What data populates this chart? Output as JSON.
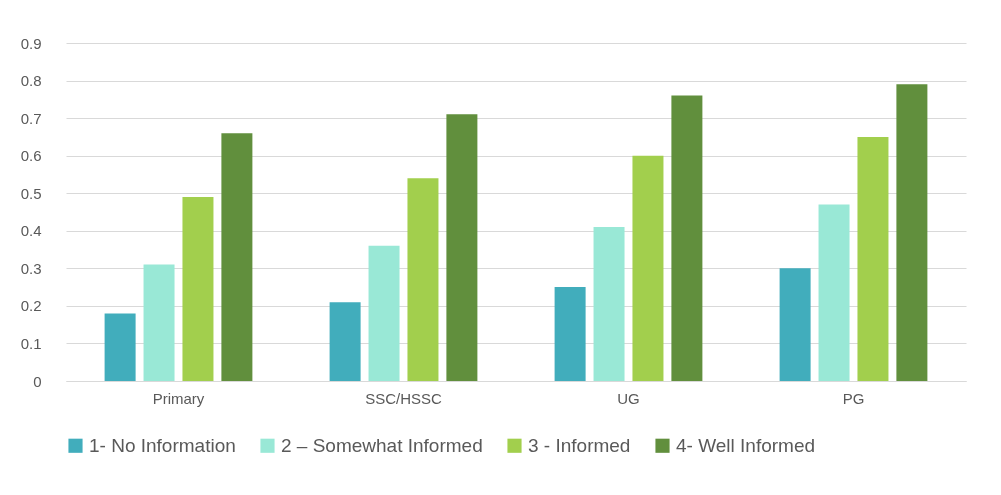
{
  "chart_data": {
    "type": "bar",
    "categories": [
      "Primary",
      "SSC/HSSC",
      "UG",
      "PG"
    ],
    "series": [
      {
        "name": "1- No Information",
        "color": "#41adbc",
        "values": [
          0.18,
          0.21,
          0.25,
          0.3
        ]
      },
      {
        "name": "2 – Somewhat Informed",
        "color": "#99e8d6",
        "values": [
          0.31,
          0.36,
          0.41,
          0.47
        ]
      },
      {
        "name": "3 - Informed",
        "color": "#a2cf4d",
        "values": [
          0.49,
          0.54,
          0.6,
          0.65
        ]
      },
      {
        "name": "4- Well Informed",
        "color": "#618f3d",
        "values": [
          0.66,
          0.71,
          0.76,
          0.79
        ]
      }
    ],
    "ylim": [
      0,
      0.9
    ],
    "yticks": [
      0,
      0.1,
      0.2,
      0.3,
      0.4,
      0.5,
      0.6,
      0.7,
      0.8,
      0.9
    ],
    "grid": "y",
    "legend": "bottom"
  }
}
